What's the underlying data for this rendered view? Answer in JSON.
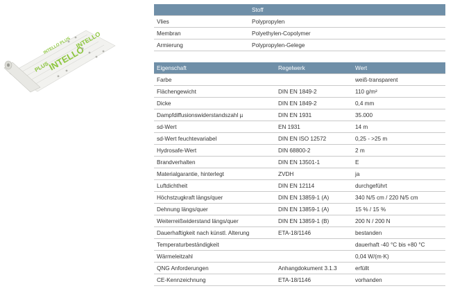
{
  "material_table": {
    "header": [
      "",
      "Stoff"
    ],
    "rows": [
      [
        "Vlies",
        "Polypropylen"
      ],
      [
        "Membran",
        "Polyethylen-Copolymer"
      ],
      [
        "Armierung",
        "Polypropylen-Gelege"
      ]
    ]
  },
  "properties_table": {
    "header": [
      "Eigenschaft",
      "Regelwerk",
      "Wert"
    ],
    "rows": [
      [
        "Farbe",
        "",
        "weiß-transparent"
      ],
      [
        "Flächengewicht",
        "DIN EN 1849-2",
        "110 g/m²"
      ],
      [
        "Dicke",
        "DIN EN 1849-2",
        "0,4 mm"
      ],
      [
        "Dampfdiffusionswiderstandszahl µ",
        "DIN EN 1931",
        "35.000"
      ],
      [
        "sd-Wert",
        "EN 1931",
        "14 m"
      ],
      [
        "sd-Wert feuchtevariabel",
        "DIN EN ISO 12572",
        "0,25 - >25 m"
      ],
      [
        "Hydrosafe-Wert",
        "DIN 68800-2",
        "2 m"
      ],
      [
        "Brandverhalten",
        "DIN EN 13501-1",
        "E"
      ],
      [
        "Materialgarantie, hinterlegt",
        "ZVDH",
        "ja"
      ],
      [
        "Luftdichtheit",
        "DIN EN 12114",
        "durchgeführt"
      ],
      [
        "Höchstzugkraft längs/quer",
        "DIN EN 13859-1 (A)",
        "340 N/5 cm / 220 N/5 cm"
      ],
      [
        "Dehnung längs/quer",
        "DIN EN 13859-1 (A)",
        "15 % / 15 %"
      ],
      [
        "Weiterreißwiderstand längs/quer",
        "DIN EN 13859-1 (B)",
        "200 N / 200 N"
      ],
      [
        "Dauerhaftigkeit nach künstl. Alterung",
        "ETA-18/1146",
        "bestanden"
      ],
      [
        "Temperaturbeständigkeit",
        "",
        "dauerhaft -40 °C bis +80 °C"
      ],
      [
        "Wärmeleitzahl",
        "",
        "0,04 W/(m·K)"
      ],
      [
        "QNG Anforderungen",
        "Anhangdokument 3.1.3",
        "erfüllt"
      ],
      [
        "CE-Kennzeichnung",
        "ETA-18/1146",
        "vorhanden"
      ]
    ]
  },
  "product_image": {
    "print_text": [
      "INTELLO PLUS",
      "INTELLO",
      "PLUS"
    ],
    "accent_color": "#8dc63f"
  }
}
